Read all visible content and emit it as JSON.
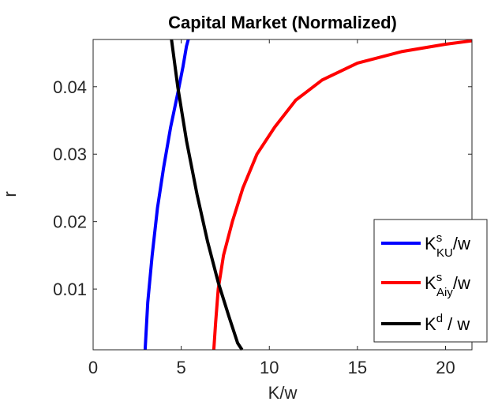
{
  "chart_data": {
    "type": "line",
    "title": "Capital Market (Normalized)",
    "xlabel": "K/w",
    "ylabel": "r",
    "xlim": [
      0,
      21.5
    ],
    "ylim": [
      0.001,
      0.047
    ],
    "x_ticks": [
      "0",
      "5",
      "10",
      "15",
      "20"
    ],
    "y_ticks": [
      "0.01",
      "0.02",
      "0.03",
      "0.04"
    ],
    "grid": false,
    "legend_position": "bottom-right",
    "series": [
      {
        "legend_base": "K",
        "legend_sup": "s",
        "legend_sub": "KU",
        "legend_tail": "/w",
        "color": "#0000ff",
        "x": [
          2.95,
          3.1,
          3.35,
          3.65,
          4.0,
          4.4,
          4.8,
          5.1,
          5.3,
          5.4
        ],
        "y": [
          0.001,
          0.008,
          0.015,
          0.022,
          0.028,
          0.034,
          0.039,
          0.043,
          0.046,
          0.047
        ]
      },
      {
        "legend_base": "K",
        "legend_sup": "s",
        "legend_sub": "Aiy",
        "legend_tail": "/w",
        "color": "#ff0000",
        "x": [
          6.85,
          6.95,
          7.1,
          7.4,
          7.9,
          8.5,
          9.3,
          10.3,
          11.5,
          13.0,
          15.0,
          17.5,
          20.0,
          21.5
        ],
        "y": [
          0.001,
          0.005,
          0.01,
          0.015,
          0.02,
          0.025,
          0.03,
          0.034,
          0.038,
          0.041,
          0.0435,
          0.0452,
          0.0463,
          0.0468
        ]
      },
      {
        "legend_base": "K",
        "legend_sup": "d",
        "legend_sub": "",
        "legend_tail": " / w",
        "color": "#000000",
        "x": [
          4.45,
          4.8,
          5.3,
          5.9,
          6.5,
          7.1,
          7.7,
          8.2,
          8.45
        ],
        "y": [
          0.047,
          0.04,
          0.032,
          0.024,
          0.017,
          0.011,
          0.006,
          0.002,
          0.001
        ]
      }
    ]
  }
}
